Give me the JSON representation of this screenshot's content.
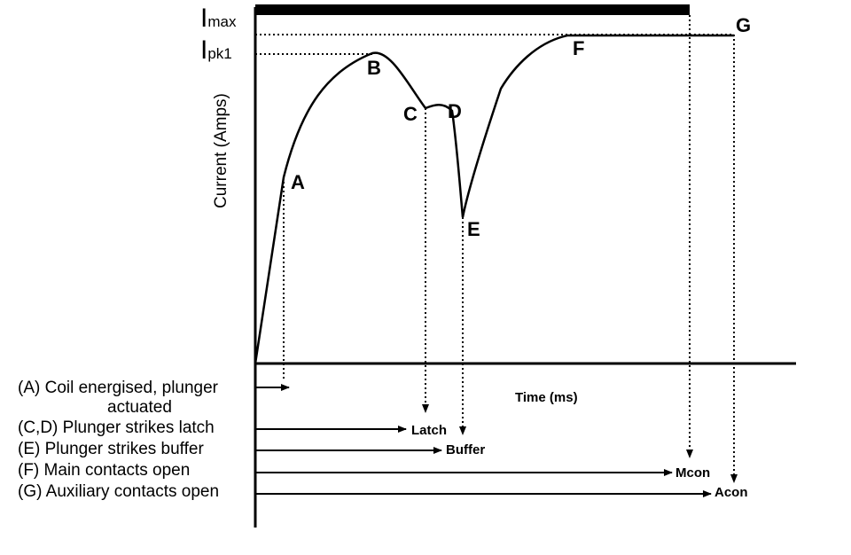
{
  "y_axis": {
    "label": "Current (Amps)",
    "imax_main": "I",
    "imax_sub": "max",
    "ipk1_main": "I",
    "ipk1_sub": "pk1"
  },
  "x_axis": {
    "label": "Time (ms)"
  },
  "points": {
    "A": "A",
    "B": "B",
    "C": "C",
    "D": "D",
    "E": "E",
    "F": "F",
    "G": "G"
  },
  "legend": {
    "A_line1": "(A) Coil energised, plunger",
    "A_line2": "actuated",
    "CD": "(C,D) Plunger strikes latch",
    "E": "(E) Plunger strikes buffer",
    "F": "(F) Main contacts open",
    "G": "(G) Auxiliary contacts open"
  },
  "markers": {
    "latch": "Latch",
    "buffer": "Buffer",
    "mcon": "Mcon",
    "acon": "Acon"
  }
}
